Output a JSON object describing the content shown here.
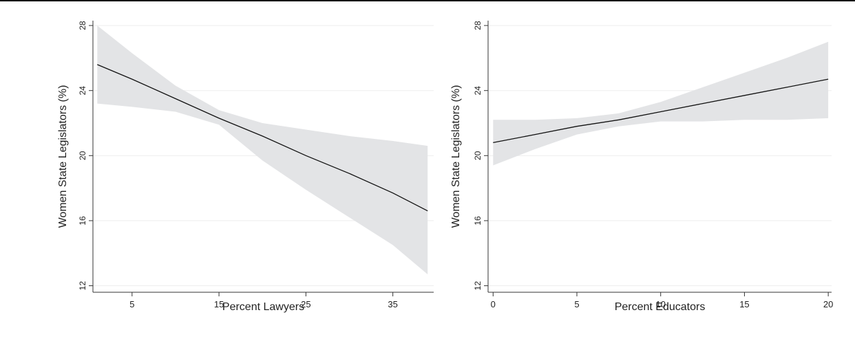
{
  "chart_data": [
    {
      "type": "line",
      "xlabel": "Percent Lawyers",
      "ylabel": "Women State Legislators (%)",
      "xlim": [
        0.5,
        39.7
      ],
      "ylim": [
        11.6,
        28.3
      ],
      "xticks": [
        5,
        15,
        25,
        35
      ],
      "yticks": [
        12,
        16,
        20,
        24,
        28
      ],
      "grid": true,
      "series": [
        {
          "x": [
            1,
            5,
            10,
            15,
            20,
            25,
            30,
            35,
            39
          ],
          "y": [
            25.6,
            24.7,
            23.5,
            22.3,
            21.2,
            20.0,
            18.9,
            17.7,
            16.6
          ],
          "ci_lower": [
            23.2,
            23.0,
            22.7,
            21.9,
            19.7,
            17.9,
            16.2,
            14.5,
            12.7
          ],
          "ci_upper": [
            28.0,
            26.3,
            24.3,
            22.8,
            22.0,
            21.6,
            21.2,
            20.9,
            20.6
          ]
        }
      ]
    },
    {
      "type": "line",
      "xlabel": "Percent Educators",
      "ylabel": "Women State Legislators (%)",
      "xlim": [
        -0.3,
        20.2
      ],
      "ylim": [
        11.6,
        28.3
      ],
      "xticks": [
        0,
        5,
        10,
        15,
        20
      ],
      "yticks": [
        12,
        16,
        20,
        24,
        28
      ],
      "grid": true,
      "series": [
        {
          "x": [
            0,
            2.5,
            5,
            7.5,
            10,
            12.5,
            15,
            17.5,
            20
          ],
          "y": [
            20.8,
            21.3,
            21.8,
            22.2,
            22.7,
            23.2,
            23.7,
            24.2,
            24.7
          ],
          "ci_lower": [
            19.4,
            20.4,
            21.3,
            21.8,
            22.1,
            22.1,
            22.2,
            22.2,
            22.3
          ],
          "ci_upper": [
            22.2,
            22.2,
            22.3,
            22.6,
            23.3,
            24.2,
            25.1,
            26.0,
            27.0
          ]
        }
      ]
    }
  ]
}
